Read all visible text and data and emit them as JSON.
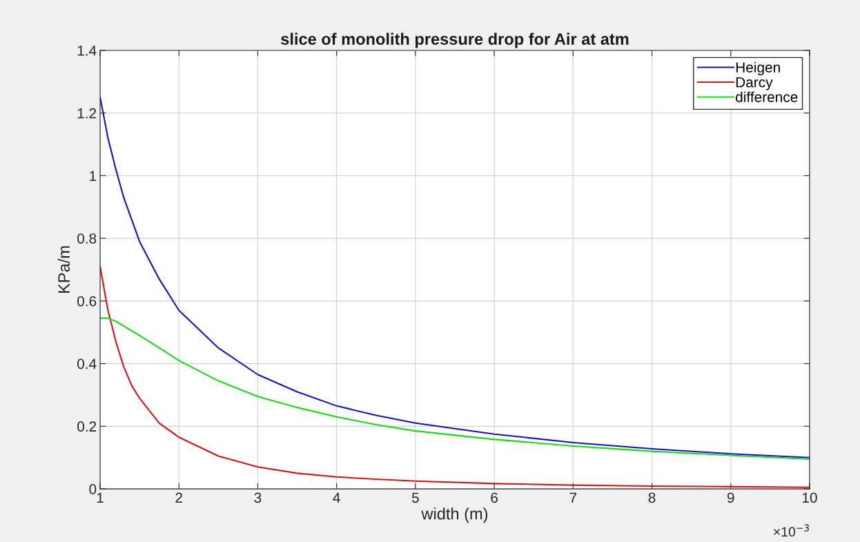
{
  "chart_data": {
    "type": "line",
    "title": "slice of monolith pressure drop for Air at atm",
    "xlabel": "width (m)",
    "ylabel": "KPa/m",
    "annotations": [
      "×10$^{−3}$"
    ],
    "x": [
      1,
      1.1,
      1.2,
      1.3,
      1.4,
      1.5,
      1.75,
      2,
      2.5,
      3,
      3.5,
      4,
      4.5,
      5,
      6,
      7,
      8,
      9,
      10
    ],
    "series": [
      {
        "name": "Heigen",
        "color": "#1010c8",
        "values": [
          1.25,
          1.12,
          1.02,
          0.93,
          0.86,
          0.79,
          0.67,
          0.57,
          0.45,
          0.365,
          0.31,
          0.265,
          0.235,
          0.21,
          0.175,
          0.148,
          0.128,
          0.112,
          0.1
        ]
      },
      {
        "name": "Darcy",
        "color": "#e01010",
        "values": [
          0.71,
          0.57,
          0.47,
          0.39,
          0.33,
          0.29,
          0.21,
          0.165,
          0.105,
          0.07,
          0.05,
          0.038,
          0.031,
          0.025,
          0.017,
          0.012,
          0.009,
          0.007,
          0.005
        ]
      },
      {
        "name": "difference",
        "color": "#10e010",
        "values": [
          0.545,
          0.545,
          0.535,
          0.52,
          0.505,
          0.49,
          0.45,
          0.41,
          0.345,
          0.295,
          0.26,
          0.23,
          0.205,
          0.185,
          0.158,
          0.137,
          0.12,
          0.107,
          0.095
        ]
      }
    ],
    "xlim": [
      1,
      10
    ],
    "xticks": [
      1,
      2,
      3,
      4,
      5,
      6,
      7,
      8,
      9,
      10
    ],
    "ylim": [
      0,
      1.4
    ],
    "yticks": [
      0,
      0.2,
      0.4,
      0.6,
      0.8,
      1,
      1.2,
      1.4
    ],
    "grid": true,
    "legend": "top right",
    "marker": "none",
    "line_style": "solid"
  }
}
